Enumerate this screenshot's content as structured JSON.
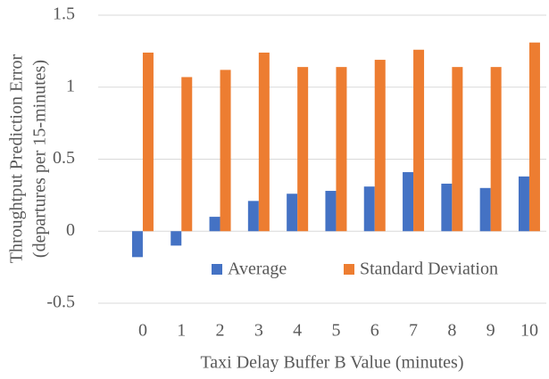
{
  "chart_data": {
    "type": "bar",
    "xlabel": "Taxi Delay Buffer B Value (minutes)",
    "ylabel": [
      "Throughtput Prediction Error",
      "(departures per 15-minutes)"
    ],
    "categories": [
      "0",
      "1",
      "2",
      "3",
      "4",
      "5",
      "6",
      "7",
      "8",
      "9",
      "10"
    ],
    "series": [
      {
        "name": "Average",
        "color": "#4472c4",
        "values": [
          -0.18,
          -0.1,
          0.1,
          0.21,
          0.26,
          0.28,
          0.31,
          0.41,
          0.33,
          0.3,
          0.38
        ]
      },
      {
        "name": "Standard Deviation",
        "color": "#ed7d31",
        "values": [
          1.24,
          1.07,
          1.12,
          1.24,
          1.14,
          1.14,
          1.19,
          1.26,
          1.14,
          1.14,
          1.31
        ]
      }
    ],
    "ylim": [
      -0.5,
      1.5
    ],
    "yticks": [
      -0.5,
      0,
      0.5,
      1,
      1.5
    ],
    "grid": true,
    "legend": "bottom"
  }
}
